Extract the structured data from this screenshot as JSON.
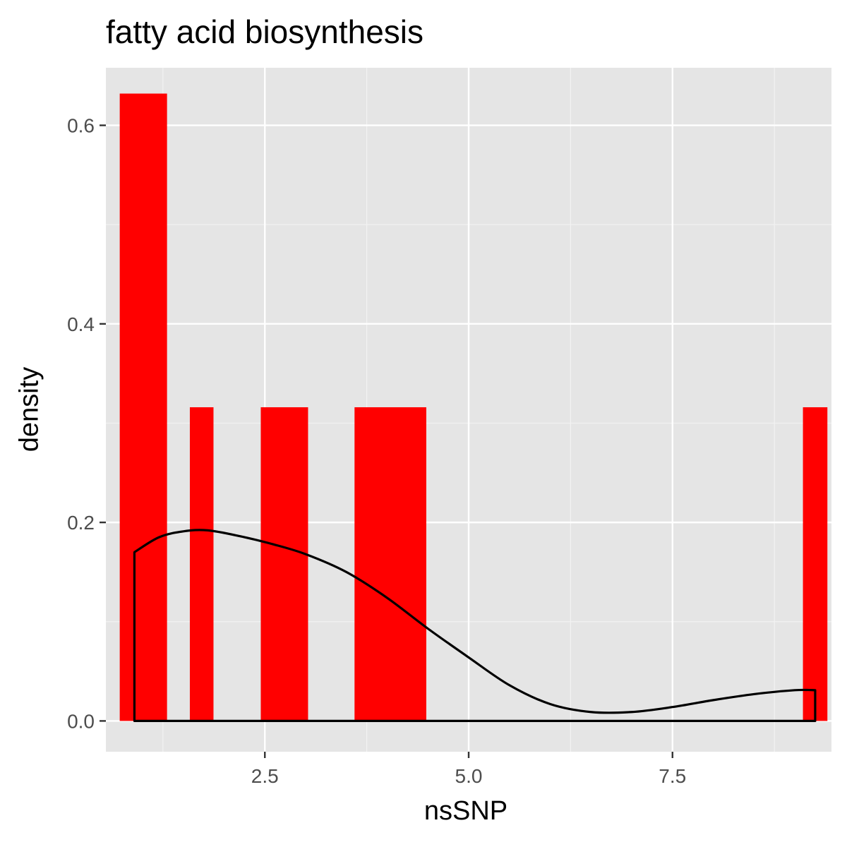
{
  "chart_data": {
    "type": "bar",
    "title": "fatty acid biosynthesis",
    "xlabel": "nsSNP",
    "ylabel": "density",
    "xlim": [
      0.55,
      9.45
    ],
    "ylim": [
      -0.031,
      0.658
    ],
    "grid": true,
    "xticks": [
      2.5,
      5.0,
      7.5
    ],
    "xtick_labels": [
      "2.5",
      "5.0",
      "7.5"
    ],
    "yticks": [
      0.0,
      0.2,
      0.4,
      0.6
    ],
    "ytick_labels": [
      "0.0",
      "0.2",
      "0.4",
      "0.6"
    ],
    "histogram": {
      "color": "#ff0000",
      "bins": [
        {
          "x0": 0.72,
          "x1": 1.3,
          "density": 0.632
        },
        {
          "x0": 1.58,
          "x1": 1.87,
          "density": 0.316
        },
        {
          "x0": 2.45,
          "x1": 3.03,
          "density": 0.316
        },
        {
          "x0": 3.6,
          "x1": 4.48,
          "density": 0.316
        },
        {
          "x0": 9.1,
          "x1": 9.4,
          "density": 0.316
        }
      ]
    },
    "density_curve": {
      "color": "#000000",
      "x": [
        0.9,
        1.2,
        1.5,
        1.8,
        2.2,
        2.6,
        3.0,
        3.5,
        4.0,
        4.5,
        5.0,
        5.5,
        6.0,
        6.5,
        7.0,
        7.5,
        8.0,
        8.5,
        9.0,
        9.25
      ],
      "y": [
        0.17,
        0.185,
        0.191,
        0.192,
        0.186,
        0.178,
        0.168,
        0.15,
        0.124,
        0.093,
        0.064,
        0.036,
        0.017,
        0.009,
        0.009,
        0.014,
        0.021,
        0.027,
        0.031,
        0.031
      ]
    }
  }
}
